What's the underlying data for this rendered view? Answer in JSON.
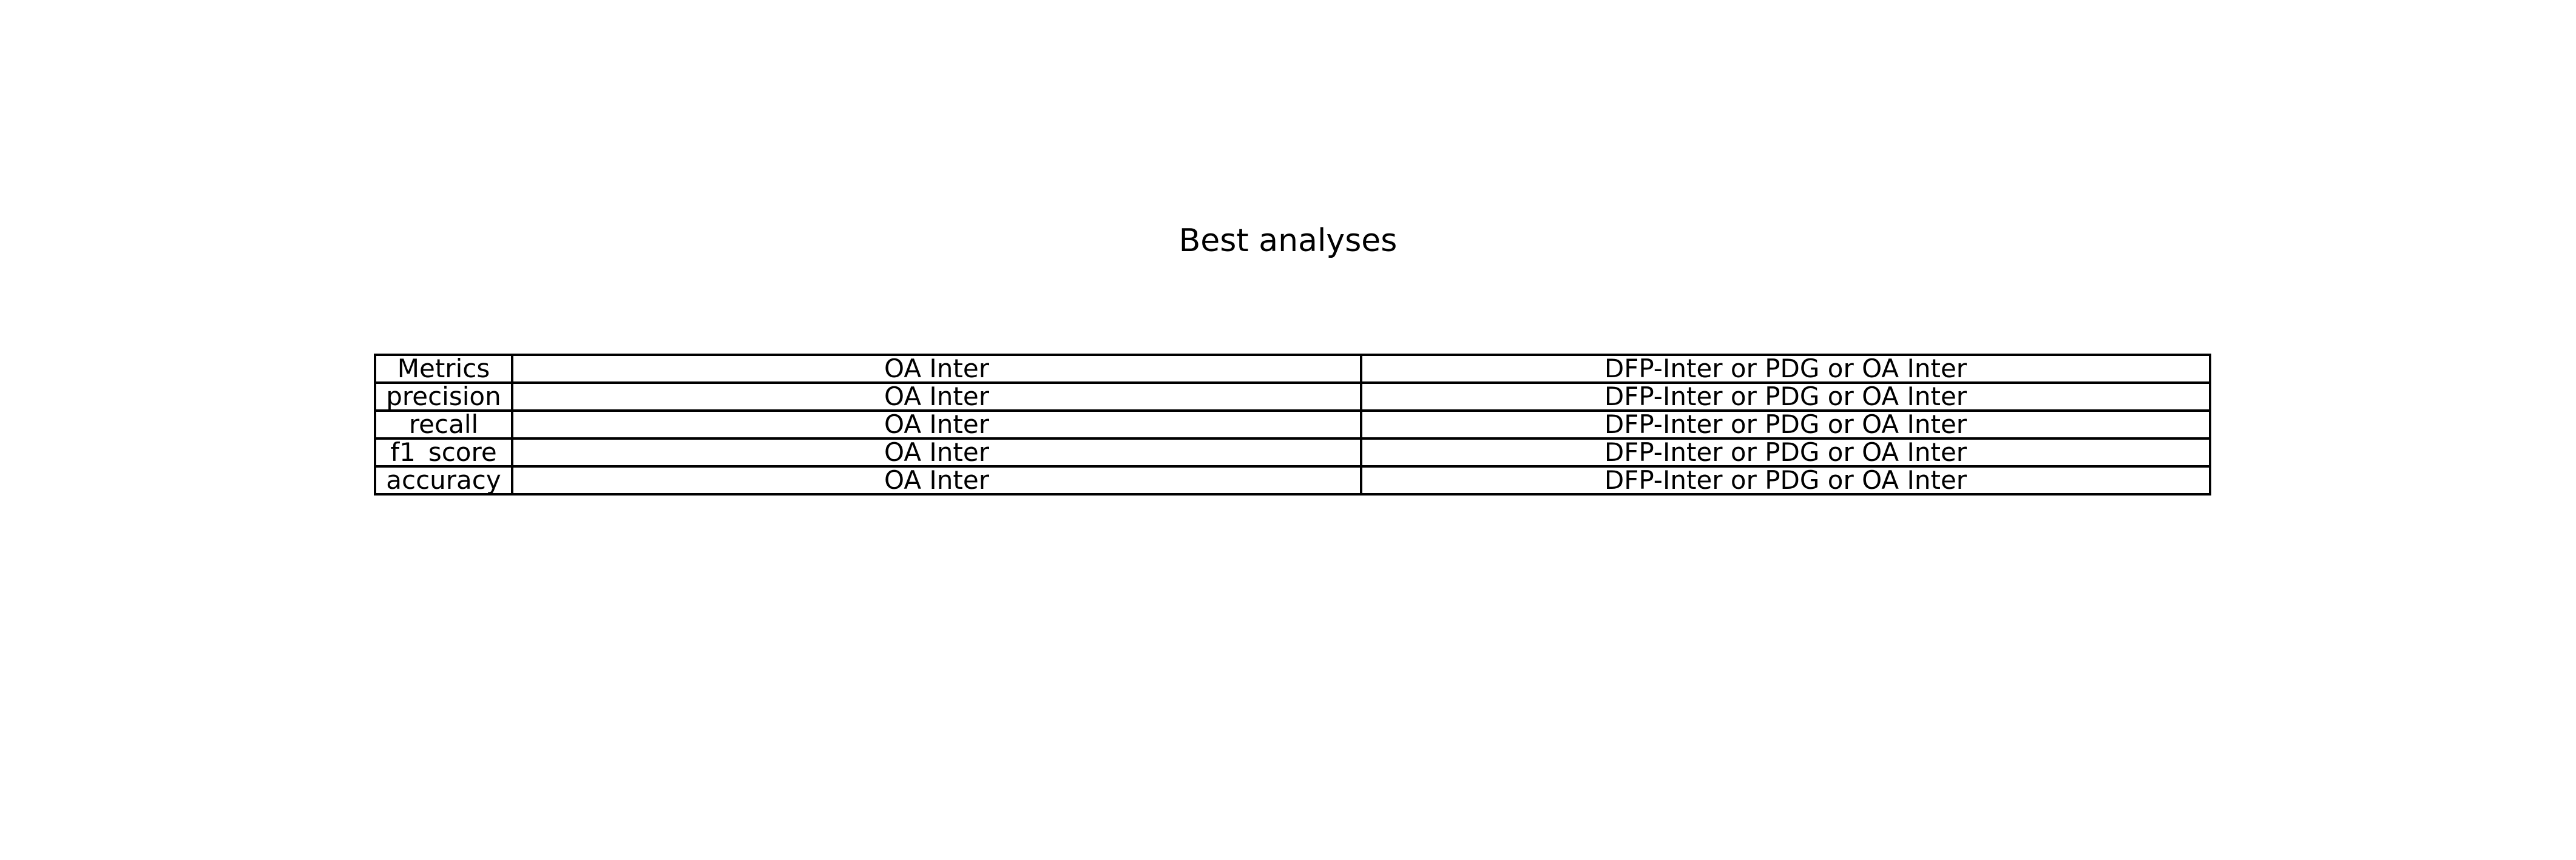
{
  "chart_data": {
    "type": "table",
    "title": "Best analyses",
    "columns": [
      "Metrics",
      "OA Inter",
      "DFP-Inter or PDG or OA Inter"
    ],
    "rows": [
      [
        "precision",
        "OA Inter",
        "DFP-Inter or PDG or OA Inter"
      ],
      [
        "recall",
        "OA Inter",
        "DFP-Inter or PDG or OA Inter"
      ],
      [
        "f1_score",
        "OA Inter",
        "DFP-Inter or PDG or OA Inter"
      ],
      [
        "accuracy",
        "OA Inter",
        "DFP-Inter or PDG or OA Inter"
      ]
    ]
  }
}
